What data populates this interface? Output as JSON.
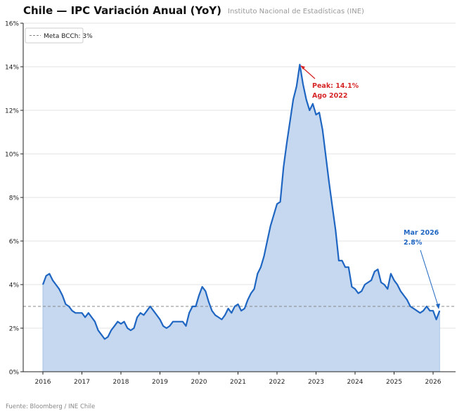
{
  "chart_data": {
    "type": "area",
    "title": "Chile — IPC Variación Anual (YoY)",
    "subtitle": "Instituto Nacional de Estadísticas (INE)",
    "source": "Fuente: Bloomberg / INE Chile",
    "start": "2016-01",
    "frequency": "monthly",
    "ylim": [
      0,
      16
    ],
    "yticks": [
      "0%",
      "2%",
      "4%",
      "6%",
      "8%",
      "10%",
      "12%",
      "14%",
      "16%"
    ],
    "xticks": [
      "2016",
      "2017",
      "2018",
      "2019",
      "2020",
      "2021",
      "2022",
      "2023",
      "2024",
      "2025",
      "2026"
    ],
    "grid": "horizontal",
    "legend": {
      "position": "top-left",
      "label": "Meta BCCh: 3%"
    },
    "target": 3,
    "colors": {
      "line": "#1f66c2",
      "fill": "#c5d8ef",
      "target": "#888888",
      "peak": "#d62728",
      "last": "#1f66c2"
    },
    "series": [
      {
        "values": [
          4.0,
          4.4,
          4.5,
          4.2,
          4.0,
          3.8,
          3.5,
          3.1,
          3.0,
          2.8,
          2.7,
          2.7,
          2.7,
          2.5,
          2.7,
          2.5,
          2.3,
          1.9,
          1.7,
          1.5,
          1.6,
          1.9,
          2.1,
          2.3,
          2.2,
          2.3,
          2.0,
          1.9,
          2.0,
          2.5,
          2.7,
          2.6,
          2.8,
          3.0,
          2.8,
          2.6,
          2.4,
          2.1,
          2.0,
          2.1,
          2.3,
          2.3,
          2.3,
          2.3,
          2.1,
          2.7,
          3.0,
          3.0,
          3.5,
          3.9,
          3.7,
          3.2,
          2.8,
          2.6,
          2.5,
          2.4,
          2.6,
          2.9,
          2.7,
          3.0,
          3.1,
          2.8,
          2.9,
          3.3,
          3.6,
          3.8,
          4.5,
          4.8,
          5.3,
          6.0,
          6.7,
          7.2,
          7.7,
          7.8,
          9.4,
          10.5,
          11.5,
          12.5,
          13.1,
          14.1,
          13.2,
          12.5,
          12.0,
          12.3,
          11.8,
          11.9,
          11.1,
          9.9,
          8.7,
          7.6,
          6.5,
          5.1,
          5.1,
          4.8,
          4.8,
          3.9,
          3.8,
          3.6,
          3.7,
          4.0,
          4.1,
          4.2,
          4.6,
          4.7,
          4.1,
          4.0,
          3.8,
          4.5,
          4.2,
          4.0,
          3.7,
          3.5,
          3.3,
          3.0,
          2.9,
          2.8,
          2.7,
          2.8,
          3.0,
          2.8,
          2.8,
          2.4,
          2.8
        ]
      }
    ],
    "annotations": {
      "peak": {
        "line1": "Peak: 14.1%",
        "line2": "Ago 2022"
      },
      "last": {
        "line1": "Mar 2026",
        "line2": "2.8%"
      }
    }
  }
}
